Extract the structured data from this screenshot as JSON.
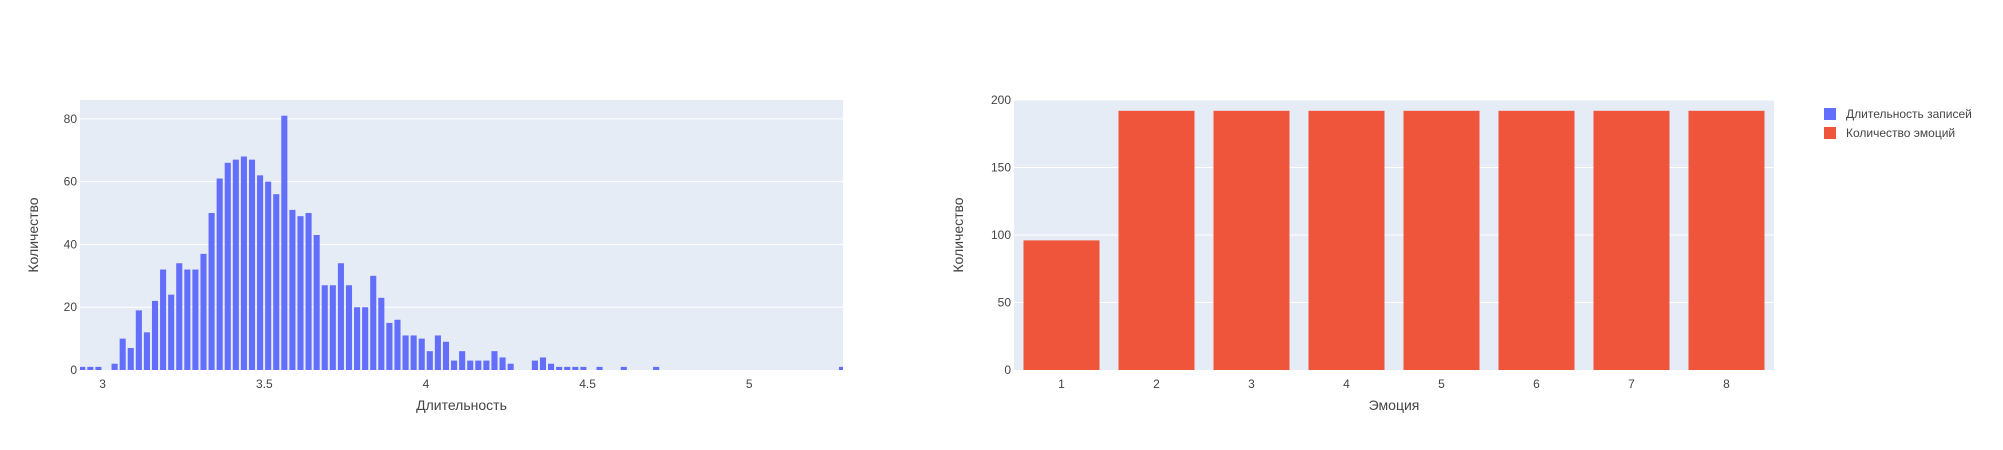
{
  "colors": {
    "plot_bg": "#e5ecf6",
    "grid": "#ffffff",
    "series_duration": "#636efa",
    "series_emotions": "#ef553b",
    "text": "#444444"
  },
  "legend": {
    "placement": "top-right",
    "items": [
      {
        "label": "Длительность записей",
        "color": "#636efa"
      },
      {
        "label": "Количество эмоций",
        "color": "#ef553b"
      }
    ]
  },
  "chart_data": [
    {
      "type": "bar",
      "series_name": "Длительность записей",
      "xlabel": "Длительность",
      "ylabel": "Количество",
      "xlim": [
        2.93,
        5.29
      ],
      "ylim": [
        0,
        86
      ],
      "grid": true,
      "x_ticks": [
        {
          "value": 3,
          "label": "3"
        },
        {
          "value": 3.5,
          "label": "3.5"
        },
        {
          "value": 4,
          "label": "4"
        },
        {
          "value": 4.5,
          "label": "4.5"
        },
        {
          "value": 5,
          "label": "5"
        }
      ],
      "y_ticks": [
        {
          "value": 0,
          "label": "0"
        },
        {
          "value": 20,
          "label": "20"
        },
        {
          "value": 40,
          "label": "40"
        },
        {
          "value": 60,
          "label": "60"
        },
        {
          "value": 80,
          "label": "80"
        }
      ],
      "bin_width": 0.025,
      "x": [
        2.937,
        2.962,
        2.987,
        3.012,
        3.037,
        3.062,
        3.087,
        3.112,
        3.137,
        3.162,
        3.187,
        3.212,
        3.237,
        3.262,
        3.287,
        3.312,
        3.337,
        3.362,
        3.387,
        3.412,
        3.437,
        3.462,
        3.487,
        3.512,
        3.537,
        3.562,
        3.587,
        3.612,
        3.637,
        3.662,
        3.687,
        3.712,
        3.737,
        3.762,
        3.787,
        3.812,
        3.837,
        3.862,
        3.887,
        3.912,
        3.937,
        3.962,
        3.987,
        4.012,
        4.037,
        4.062,
        4.087,
        4.112,
        4.137,
        4.162,
        4.187,
        4.212,
        4.237,
        4.262,
        4.287,
        4.312,
        4.337,
        4.362,
        4.387,
        4.412,
        4.437,
        4.462,
        4.487,
        4.512,
        4.537,
        4.562,
        4.587,
        4.612,
        4.637,
        4.662,
        4.687,
        4.712,
        4.737,
        4.762,
        4.787,
        4.812,
        4.837,
        4.862,
        4.887,
        4.912,
        4.937,
        4.962,
        4.987,
        5.012,
        5.037,
        5.062,
        5.087,
        5.112,
        5.137,
        5.162,
        5.187,
        5.212,
        5.237,
        5.262,
        5.287
      ],
      "values": [
        1,
        1,
        1,
        0,
        2,
        10,
        7,
        19,
        12,
        22,
        32,
        24,
        34,
        32,
        32,
        37,
        50,
        61,
        66,
        67,
        68,
        67,
        62,
        60,
        56,
        81,
        51,
        49,
        50,
        43,
        27,
        27,
        34,
        27,
        20,
        20,
        30,
        23,
        15,
        16,
        11,
        11,
        10,
        6,
        11,
        9,
        3,
        6,
        3,
        3,
        3,
        6,
        4,
        2,
        0,
        0,
        3,
        4,
        2,
        1,
        1,
        1,
        1,
        0,
        1,
        0,
        0,
        1,
        0,
        0,
        0,
        1,
        0,
        0,
        0,
        0,
        0,
        0,
        0,
        0,
        0,
        0,
        0,
        0,
        0,
        0,
        0,
        0,
        0,
        0,
        0,
        0,
        0,
        0,
        1
      ]
    },
    {
      "type": "bar",
      "series_name": "Количество эмоций",
      "xlabel": "Эмоция",
      "ylabel": "Количество",
      "ylim": [
        0,
        200
      ],
      "grid": true,
      "categories": [
        "1",
        "2",
        "3",
        "4",
        "5",
        "6",
        "7",
        "8"
      ],
      "values": [
        96,
        192,
        192,
        192,
        192,
        192,
        192,
        192
      ],
      "y_ticks": [
        {
          "value": 0,
          "label": "0"
        },
        {
          "value": 50,
          "label": "50"
        },
        {
          "value": 100,
          "label": "100"
        },
        {
          "value": 150,
          "label": "150"
        },
        {
          "value": 200,
          "label": "200"
        }
      ]
    }
  ]
}
